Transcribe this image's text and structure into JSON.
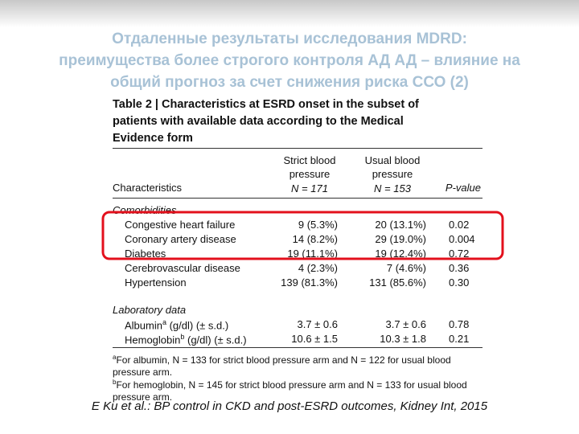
{
  "title_lines": [
    "Отдаленные результаты исследования MDRD:",
    "преимущества более строгого контроля АД АД – влияние на",
    "общий прогноз за счет снижения риска ССО (2)"
  ],
  "table": {
    "caption": "Table 2 | Characteristics at ESRD onset in the subset of patients with available data according to the Medical Evidence form",
    "headers": {
      "characteristics": "Characteristics",
      "strict": "Strict blood pressure",
      "strict_n": "N = 171",
      "usual": "Usual blood pressure",
      "usual_n": "N = 153",
      "p": "P-value"
    },
    "sections": [
      {
        "name": "Comorbidities",
        "rows": [
          [
            "Congestive heart failure",
            "9 (5.3%)",
            "20 (13.1%)",
            "0.02"
          ],
          [
            "Coronary artery disease",
            "14 (8.2%)",
            "29 (19.0%)",
            "0.004"
          ],
          [
            "Diabetes",
            "19 (11.1%)",
            "19 (12.4%)",
            "0.72"
          ],
          [
            "Cerebrovascular disease",
            "4 (2.3%)",
            "7 (4.6%)",
            "0.36"
          ],
          [
            "Hypertension",
            "139 (81.3%)",
            "131 (85.6%)",
            "0.30"
          ]
        ]
      },
      {
        "name": "Laboratory data",
        "rows": [
          [
            {
              "name": "Albumin",
              "sup": "a",
              "unit": " (g/dl) (± s.d.)"
            },
            "3.7 ± 0.6",
            "3.7 ± 0.6",
            "0.78"
          ],
          [
            {
              "name": "Hemoglobin",
              "sup": "b",
              "unit": " (g/dl) (± s.d.)"
            },
            "10.6 ± 1.5",
            "10.3 ± 1.8",
            "0.21"
          ]
        ]
      }
    ],
    "footnotes": [
      {
        "marker": "a",
        "text": "For albumin, N = 133 for strict blood pressure arm and N = 122 for usual blood pressure arm."
      },
      {
        "marker": "b",
        "text": "For hemoglobin, N = 145 for strict blood pressure arm and N = 133 for usual blood pressure arm."
      }
    ]
  },
  "citation": "E Ku et al.: BP control in CKD and post-ESRD outcomes, Kidney Int, 2015"
}
